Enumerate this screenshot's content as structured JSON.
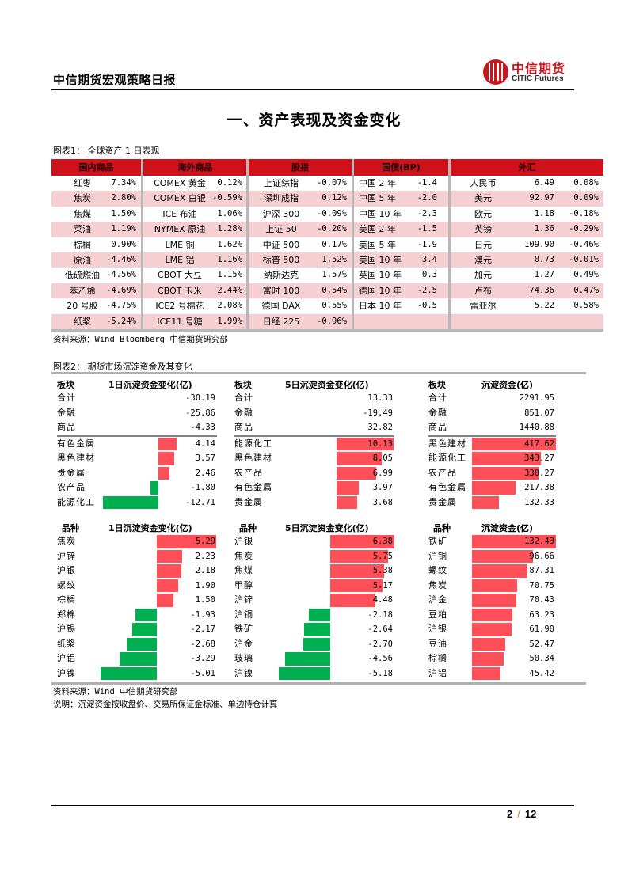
{
  "header": {
    "report_title": "中信期货宏观策略日报",
    "logo_cn": "中信期货",
    "logo_en": "CITIC Futures"
  },
  "section_title": "一、资产表现及资金变化",
  "table1": {
    "caption": "图表1： 全球资产 1 日表现",
    "source": "资料来源：Wind Bloomberg 中信期货研究部",
    "header_color": "#d0101a",
    "alt_row_color": "#f6cfd2",
    "columns": [
      {
        "title": "国内商品",
        "rows": [
          {
            "name": "红枣",
            "value": "7.34%"
          },
          {
            "name": "焦炭",
            "value": "2.80%"
          },
          {
            "name": "焦煤",
            "value": "1.50%"
          },
          {
            "name": "菜油",
            "value": "1.19%"
          },
          {
            "name": "棕榈",
            "value": "0.90%"
          },
          {
            "name": "原油",
            "value": "-4.46%"
          },
          {
            "name": "低硫燃油",
            "value": "-4.56%"
          },
          {
            "name": "苯乙烯",
            "value": "-4.69%"
          },
          {
            "name": "20 号胶",
            "value": "-4.75%"
          },
          {
            "name": "纸浆",
            "value": "-5.24%"
          }
        ]
      },
      {
        "title": "海外商品",
        "rows": [
          {
            "name": "COMEX 黄金",
            "value": "0.12%"
          },
          {
            "name": "COMEX 白银",
            "value": "-0.59%"
          },
          {
            "name": "ICE 布油",
            "value": "1.06%"
          },
          {
            "name": "NYMEX 原油",
            "value": "1.28%"
          },
          {
            "name": "LME 铜",
            "value": "1.62%"
          },
          {
            "name": "LME 铝",
            "value": "1.16%"
          },
          {
            "name": "CBOT 大豆",
            "value": "1.15%"
          },
          {
            "name": "CBOT 玉米",
            "value": "2.44%"
          },
          {
            "name": "ICE2 号棉花",
            "value": "2.08%"
          },
          {
            "name": "ICE11 号糖",
            "value": "1.99%"
          }
        ]
      },
      {
        "title": "股指",
        "rows": [
          {
            "name": "上证综指",
            "value": "-0.07%"
          },
          {
            "name": "深圳成指",
            "value": "0.12%"
          },
          {
            "name": "沪深 300",
            "value": "-0.09%"
          },
          {
            "name": "上证 50",
            "value": "-0.20%"
          },
          {
            "name": "中证 500",
            "value": "0.17%"
          },
          {
            "name": "标普 500",
            "value": "1.52%"
          },
          {
            "name": "纳斯达克",
            "value": "1.57%"
          },
          {
            "name": "富时 100",
            "value": "0.54%"
          },
          {
            "name": "德国 DAX",
            "value": "0.55%"
          },
          {
            "name": "日经 225",
            "value": "-0.96%"
          }
        ]
      },
      {
        "title": "国债(BP)",
        "rows": [
          {
            "name": "中国 2 年",
            "value": "-1.4"
          },
          {
            "name": "中国 5 年",
            "value": "-2.0"
          },
          {
            "name": "中国 10 年",
            "value": "-2.3"
          },
          {
            "name": "美国 2 年",
            "value": "-1.5"
          },
          {
            "name": "美国 5 年",
            "value": "-1.9"
          },
          {
            "name": "美国 10 年",
            "value": "3.4"
          },
          {
            "name": "英国 10 年",
            "value": "0.3"
          },
          {
            "name": "德国 10 年",
            "value": "-2.5"
          },
          {
            "name": "日本 10 年",
            "value": "-0.5"
          },
          {
            "name": "",
            "value": ""
          }
        ]
      },
      {
        "title": "外汇",
        "rows": [
          {
            "name": "人民币",
            "price": "6.49",
            "value": "0.08%"
          },
          {
            "name": "美元",
            "price": "92.97",
            "value": "0.09%"
          },
          {
            "name": "欧元",
            "price": "1.18",
            "value": "-0.18%"
          },
          {
            "name": "英镑",
            "price": "1.36",
            "value": "-0.29%"
          },
          {
            "name": "日元",
            "price": "109.90",
            "value": "-0.46%"
          },
          {
            "name": "澳元",
            "price": "0.73",
            "value": "-0.01%"
          },
          {
            "name": "加元",
            "price": "1.27",
            "value": "0.49%"
          },
          {
            "name": "卢布",
            "price": "74.36",
            "value": "0.47%"
          },
          {
            "name": "雷亚尔",
            "price": "5.22",
            "value": "0.58%"
          },
          {
            "name": "",
            "price": "",
            "value": ""
          }
        ]
      }
    ]
  },
  "table2": {
    "caption": "图表2： 期货市场沉淀资金及其变化",
    "source": "资料来源：Wind 中信期货研究部",
    "note": "说明：沉淀资金按收盘价、交易所保证金标准、单边持仓计算",
    "pos_color": "#ff5059",
    "neg_color": "#00b050",
    "sector_panels": [
      {
        "label_header": "板块",
        "value_header": "1日沉淀资金变化(亿)",
        "totals": [
          {
            "name": "合计",
            "value": "-30.19"
          },
          {
            "name": "金融",
            "value": "-25.86"
          },
          {
            "name": "商品",
            "value": "-4.33"
          }
        ],
        "rows": [
          {
            "name": "有色金属",
            "value": "4.14",
            "num": 4.14
          },
          {
            "name": "黑色建材",
            "value": "3.57",
            "num": 3.57
          },
          {
            "name": "贵金属",
            "value": "2.46",
            "num": 2.46
          },
          {
            "name": "农产品",
            "value": "-1.80",
            "num": -1.8
          },
          {
            "name": "能源化工",
            "value": "-12.71",
            "num": -12.71
          }
        ]
      },
      {
        "label_header": "板块",
        "value_header": "5日沉淀资金变化(亿)",
        "totals": [
          {
            "name": "合计",
            "value": "13.33"
          },
          {
            "name": "金融",
            "value": "-19.49"
          },
          {
            "name": "商品",
            "value": "32.82"
          }
        ],
        "rows": [
          {
            "name": "能源化工",
            "value": "10.13",
            "num": 10.13
          },
          {
            "name": "黑色建材",
            "value": "8.05",
            "num": 8.05
          },
          {
            "name": "农产品",
            "value": "6.99",
            "num": 6.99
          },
          {
            "name": "有色金属",
            "value": "3.97",
            "num": 3.97
          },
          {
            "name": "贵金属",
            "value": "3.68",
            "num": 3.68
          }
        ]
      },
      {
        "label_header": "板块",
        "value_header": "沉淀资金(亿)",
        "totals": [
          {
            "name": "合计",
            "value": "2291.95"
          },
          {
            "name": "金融",
            "value": "851.07"
          },
          {
            "name": "商品",
            "value": "1440.88"
          }
        ],
        "rows": [
          {
            "name": "黑色建材",
            "value": "417.62",
            "num": 417.62
          },
          {
            "name": "能源化工",
            "value": "343.27",
            "num": 343.27
          },
          {
            "name": "农产品",
            "value": "330.27",
            "num": 330.27
          },
          {
            "name": "有色金属",
            "value": "217.38",
            "num": 217.38
          },
          {
            "name": "贵金属",
            "value": "132.33",
            "num": 132.33
          }
        ]
      }
    ],
    "variety_panels": [
      {
        "label_header": "品种",
        "value_header": "1日沉淀资金变化(亿)",
        "rows": [
          {
            "name": "焦炭",
            "value": "5.29",
            "num": 5.29
          },
          {
            "name": "沪锌",
            "value": "2.23",
            "num": 2.23
          },
          {
            "name": "沪银",
            "value": "2.18",
            "num": 2.18
          },
          {
            "name": "螺纹",
            "value": "1.90",
            "num": 1.9
          },
          {
            "name": "棕榈",
            "value": "1.50",
            "num": 1.5
          },
          {
            "name": "郑棉",
            "value": "-1.93",
            "num": -1.93
          },
          {
            "name": "沪锡",
            "value": "-2.17",
            "num": -2.17
          },
          {
            "name": "纸浆",
            "value": "-2.68",
            "num": -2.68
          },
          {
            "name": "沪铝",
            "value": "-3.29",
            "num": -3.29
          },
          {
            "name": "沪镍",
            "value": "-5.01",
            "num": -5.01
          }
        ]
      },
      {
        "label_header": "品种",
        "value_header": "5日沉淀资金变化(亿)",
        "rows": [
          {
            "name": "沪银",
            "value": "6.38",
            "num": 6.38
          },
          {
            "name": "焦炭",
            "value": "5.75",
            "num": 5.75
          },
          {
            "name": "焦煤",
            "value": "5.38",
            "num": 5.38
          },
          {
            "name": "甲醇",
            "value": "5.17",
            "num": 5.17
          },
          {
            "name": "沪锌",
            "value": "4.48",
            "num": 4.48
          },
          {
            "name": "沪铜",
            "value": "-2.18",
            "num": -2.18
          },
          {
            "name": "铁矿",
            "value": "-2.64",
            "num": -2.64
          },
          {
            "name": "沪金",
            "value": "-2.70",
            "num": -2.7
          },
          {
            "name": "玻璃",
            "value": "-4.56",
            "num": -4.56
          },
          {
            "name": "沪镍",
            "value": "-5.18",
            "num": -5.18
          }
        ]
      },
      {
        "label_header": "品种",
        "value_header": "沉淀资金(亿)",
        "rows": [
          {
            "name": "铁矿",
            "value": "132.43",
            "num": 132.43
          },
          {
            "name": "沪铜",
            "value": "96.66",
            "num": 96.66
          },
          {
            "name": "螺纹",
            "value": "87.31",
            "num": 87.31
          },
          {
            "name": "焦炭",
            "value": "70.75",
            "num": 70.75
          },
          {
            "name": "沪金",
            "value": "70.43",
            "num": 70.43
          },
          {
            "name": "豆粕",
            "value": "63.23",
            "num": 63.23
          },
          {
            "name": "沪银",
            "value": "61.90",
            "num": 61.9
          },
          {
            "name": "豆油",
            "value": "52.47",
            "num": 52.47
          },
          {
            "name": "棕榈",
            "value": "50.34",
            "num": 50.34
          },
          {
            "name": "沪铝",
            "value": "45.42",
            "num": 45.42
          }
        ]
      }
    ]
  },
  "footer": {
    "page_current": "2",
    "page_separator": "/",
    "page_total": "12"
  }
}
